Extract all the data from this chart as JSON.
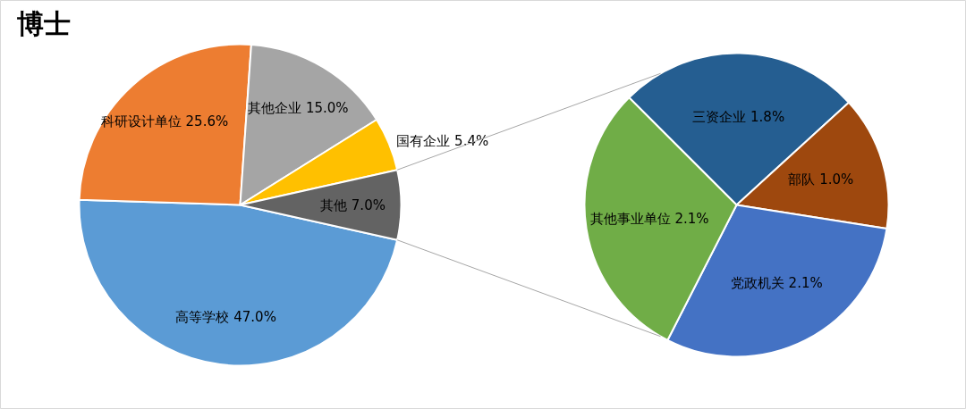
{
  "chart_data": [
    {
      "type": "pie",
      "title": "博士",
      "categories": [
        "高等学校",
        "科研设计单位",
        "其他企业",
        "国有企业",
        "其他"
      ],
      "values": [
        47.0,
        25.6,
        15.0,
        5.4,
        7.0
      ],
      "colors": [
        "#5b9bd5",
        "#ed7d31",
        "#a5a5a5",
        "#ffc000",
        "#636363"
      ],
      "value_labels": [
        "47.0%",
        "25.6%",
        "15.0%",
        "5.4%",
        "7.0%"
      ]
    },
    {
      "type": "pie",
      "categories": [
        "三资企业",
        "部队",
        "党政机关",
        "其他事业单位"
      ],
      "values": [
        1.8,
        1.0,
        2.1,
        2.1
      ],
      "colors": [
        "#255e91",
        "#9e480e",
        "#4472c4",
        "#70ad47"
      ],
      "value_labels": [
        "1.8%",
        "1.0%",
        "2.1%",
        "2.1%"
      ]
    }
  ]
}
